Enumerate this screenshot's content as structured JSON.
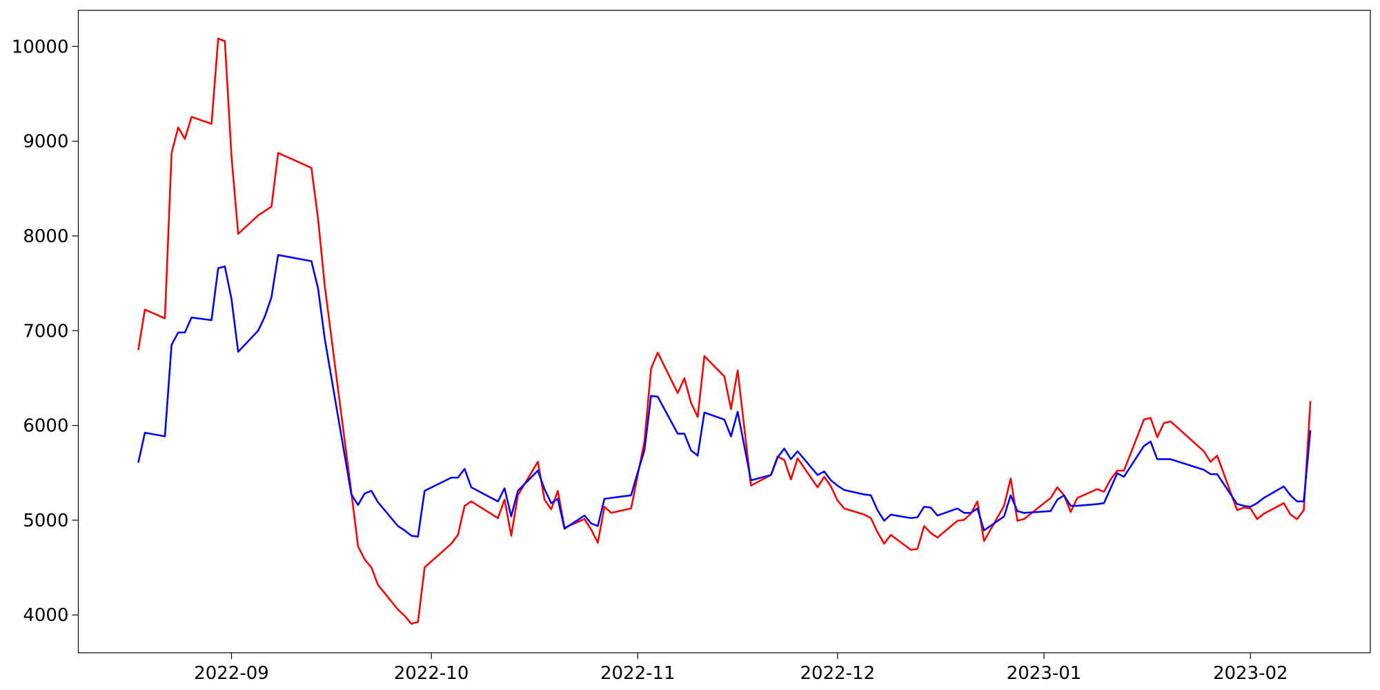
{
  "chart_data": {
    "type": "line",
    "x": [
      "2022-08-18",
      "2022-08-19",
      "2022-08-22",
      "2022-08-23",
      "2022-08-24",
      "2022-08-25",
      "2022-08-26",
      "2022-08-29",
      "2022-08-30",
      "2022-08-31",
      "2022-09-01",
      "2022-09-02",
      "2022-09-05",
      "2022-09-06",
      "2022-09-07",
      "2022-09-08",
      "2022-09-13",
      "2022-09-14",
      "2022-09-15",
      "2022-09-19",
      "2022-09-20",
      "2022-09-21",
      "2022-09-22",
      "2022-09-23",
      "2022-09-26",
      "2022-09-27",
      "2022-09-28",
      "2022-09-29",
      "2022-09-30",
      "2022-10-04",
      "2022-10-05",
      "2022-10-06",
      "2022-10-07",
      "2022-10-11",
      "2022-10-12",
      "2022-10-13",
      "2022-10-14",
      "2022-10-17",
      "2022-10-18",
      "2022-10-19",
      "2022-10-20",
      "2022-10-21",
      "2022-10-24",
      "2022-10-25",
      "2022-10-26",
      "2022-10-27",
      "2022-10-28",
      "2022-10-31",
      "2022-11-01",
      "2022-11-02",
      "2022-11-03",
      "2022-11-04",
      "2022-11-07",
      "2022-11-08",
      "2022-11-09",
      "2022-11-10",
      "2022-11-11",
      "2022-11-14",
      "2022-11-15",
      "2022-11-16",
      "2022-11-18",
      "2022-11-21",
      "2022-11-22",
      "2022-11-23",
      "2022-11-24",
      "2022-11-25",
      "2022-11-28",
      "2022-11-29",
      "2022-11-30",
      "2022-12-01",
      "2022-12-02",
      "2022-12-05",
      "2022-12-06",
      "2022-12-07",
      "2022-12-08",
      "2022-12-09",
      "2022-12-12",
      "2022-12-13",
      "2022-12-14",
      "2022-12-15",
      "2022-12-16",
      "2022-12-19",
      "2022-12-20",
      "2022-12-21",
      "2022-12-22",
      "2022-12-23",
      "2022-12-26",
      "2022-12-27",
      "2022-12-28",
      "2022-12-29",
      "2023-01-02",
      "2023-01-03",
      "2023-01-04",
      "2023-01-05",
      "2023-01-06",
      "2023-01-09",
      "2023-01-10",
      "2023-01-11",
      "2023-01-12",
      "2023-01-13",
      "2023-01-16",
      "2023-01-17",
      "2023-01-18",
      "2023-01-19",
      "2023-01-20",
      "2023-01-25",
      "2023-01-26",
      "2023-01-27",
      "2023-01-30",
      "2023-01-31",
      "2023-02-01",
      "2023-02-02",
      "2023-02-03",
      "2023-02-06",
      "2023-02-07",
      "2023-02-08",
      "2023-02-09",
      "2023-02-10"
    ],
    "series": [
      {
        "color": "#ff0000",
        "values": [
          6796,
          7223,
          7130,
          8876,
          9145,
          9024,
          9257,
          9183,
          10083,
          10056,
          8839,
          8022,
          8217,
          8263,
          8310,
          8876,
          8718,
          8180,
          7474,
          5291,
          4724,
          4585,
          4502,
          4316,
          4056,
          3991,
          3907,
          3926,
          4502,
          4752,
          4845,
          5152,
          5198,
          5022,
          5217,
          4836,
          5263,
          5616,
          5217,
          5115,
          5310,
          4920,
          5012,
          4901,
          4762,
          5142,
          5077,
          5124,
          5477,
          5830,
          6601,
          6768,
          6341,
          6498,
          6238,
          6090,
          6731,
          6517,
          6173,
          6582,
          5365,
          5477,
          5672,
          5635,
          5430,
          5653,
          5347,
          5458,
          5356,
          5207,
          5124,
          5059,
          5022,
          4873,
          4752,
          4845,
          4687,
          4697,
          4938,
          4864,
          4817,
          4994,
          5003,
          5068,
          5198,
          4780,
          5152,
          5440,
          4994,
          5012,
          5235,
          5347,
          5263,
          5087,
          5235,
          5328,
          5300,
          5430,
          5523,
          5523,
          6062,
          6080,
          5876,
          6025,
          6043,
          5727,
          5616,
          5681,
          5105,
          5133,
          5124,
          5012,
          5068,
          5180,
          5059,
          5012,
          5105,
          6257
        ]
      },
      {
        "color": "#0000ff",
        "values": [
          5607,
          5923,
          5885,
          6851,
          6981,
          6981,
          7139,
          7111,
          7659,
          7678,
          7334,
          6777,
          7000,
          7148,
          7353,
          7799,
          7734,
          7446,
          6916,
          5272,
          5161,
          5282,
          5310,
          5189,
          4938,
          4892,
          4836,
          4827,
          5310,
          5449,
          5449,
          5542,
          5347,
          5198,
          5337,
          5040,
          5310,
          5523,
          5328,
          5180,
          5226,
          4910,
          5049,
          4966,
          4938,
          5226,
          5235,
          5263,
          5505,
          5737,
          6313,
          6303,
          5913,
          5913,
          5737,
          5681,
          6136,
          6062,
          5885,
          6145,
          5421,
          5477,
          5662,
          5755,
          5644,
          5727,
          5477,
          5514,
          5421,
          5365,
          5319,
          5272,
          5263,
          5105,
          4994,
          5059,
          5022,
          5031,
          5142,
          5133,
          5049,
          5124,
          5077,
          5077,
          5124,
          4892,
          5040,
          5263,
          5096,
          5077,
          5096,
          5217,
          5263,
          5152,
          5152,
          5170,
          5180,
          5337,
          5495,
          5458,
          5783,
          5830,
          5644,
          5644,
          5644,
          5532,
          5486,
          5486,
          5170,
          5152,
          5142,
          5180,
          5235,
          5356,
          5263,
          5198,
          5198,
          5950
        ]
      }
    ],
    "xlim": [
      "2022-08-09",
      "2023-02-19"
    ],
    "xticks": [
      "2022-09",
      "2022-10",
      "2022-11",
      "2022-12",
      "2023-01",
      "2023-02"
    ],
    "ylim": [
      3601,
      10381
    ],
    "yticks": [
      4000,
      5000,
      6000,
      7000,
      8000,
      9000,
      10000
    ],
    "grid": false
  }
}
